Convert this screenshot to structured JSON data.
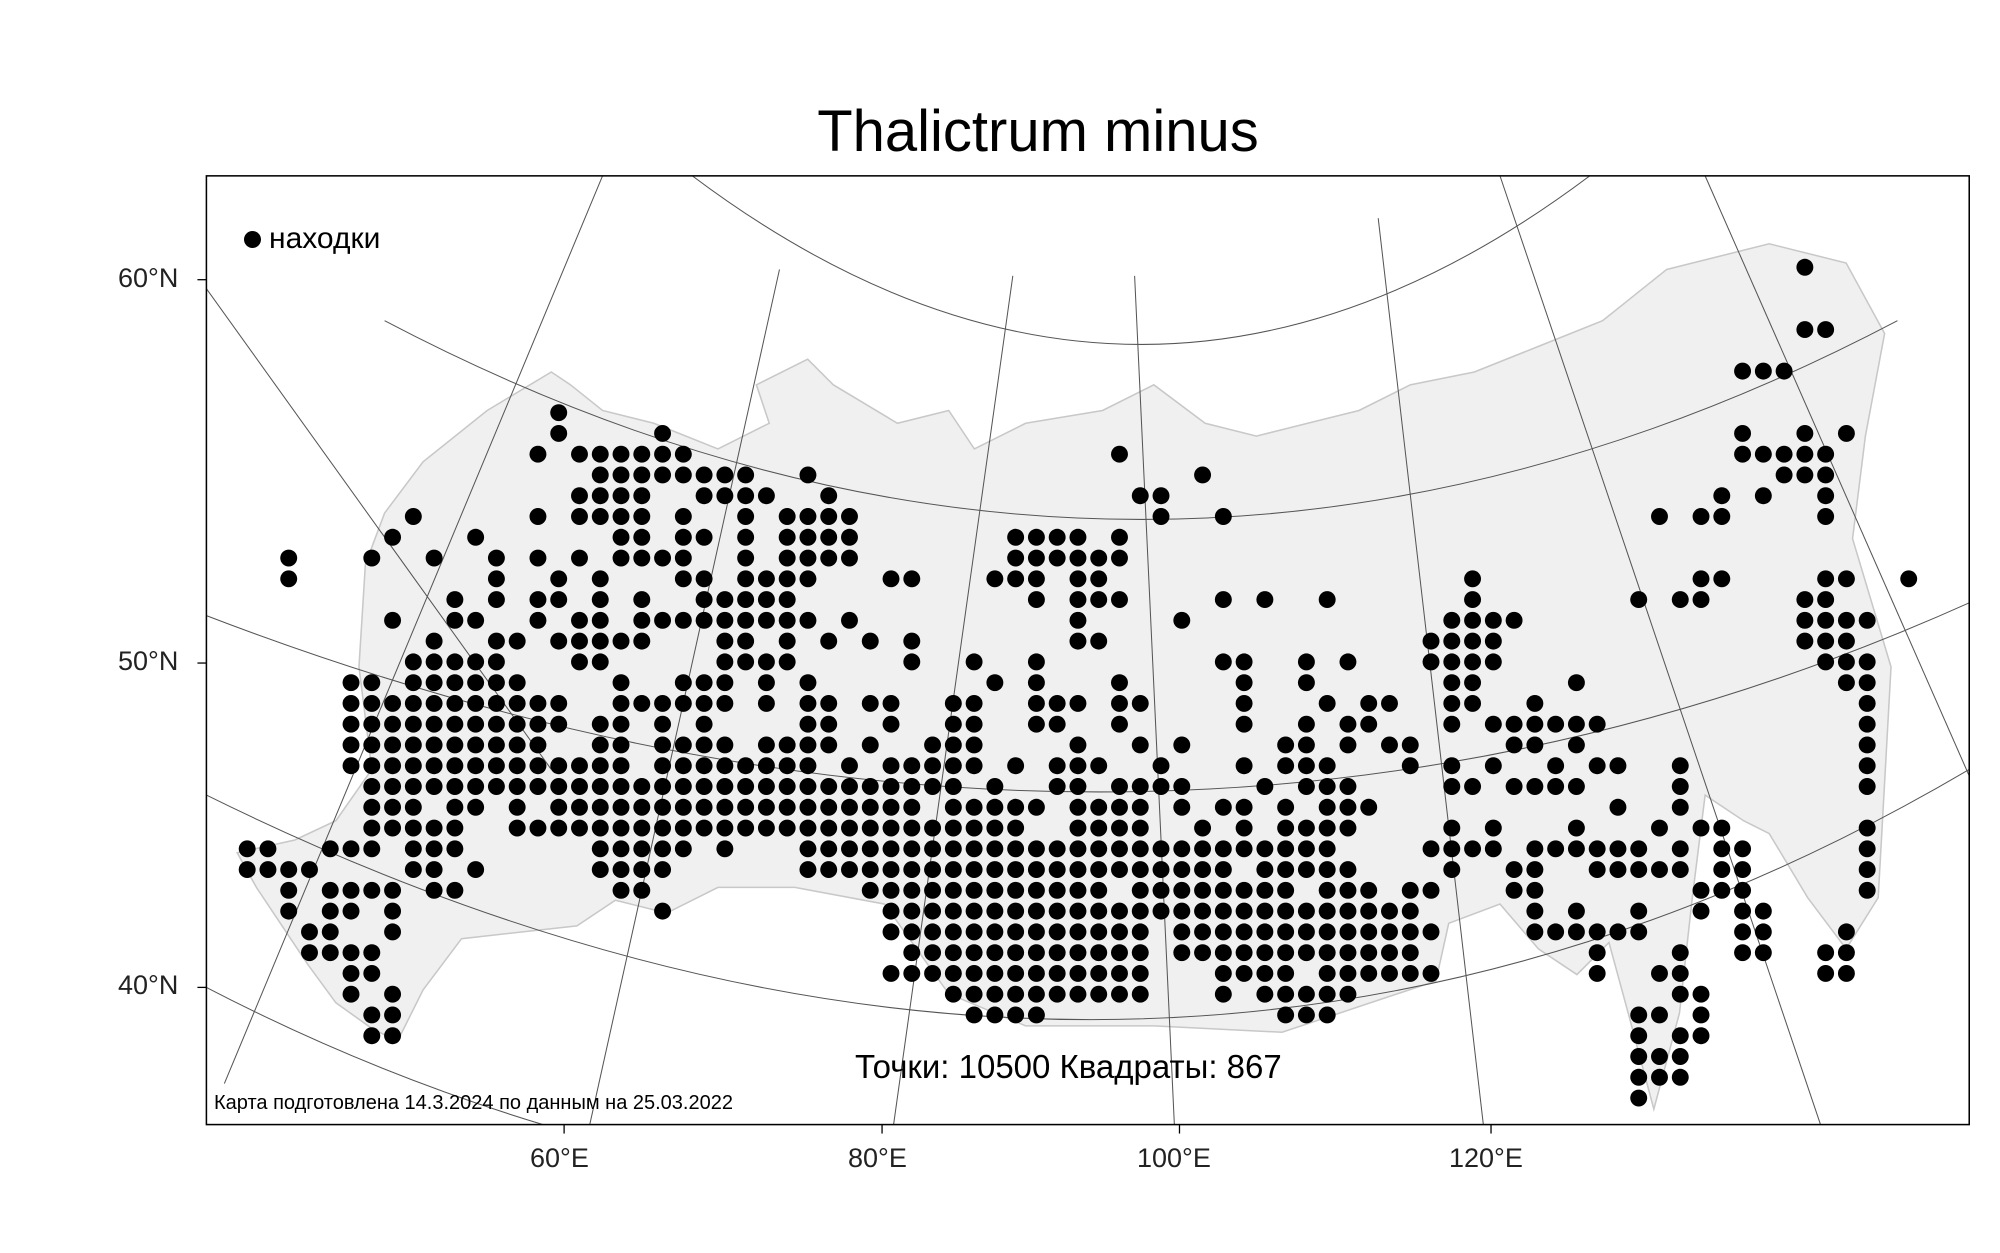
{
  "title": "Thalictrum minus",
  "legend": {
    "label": "находки",
    "marker_color": "#000000"
  },
  "axes": {
    "lat_labels": [
      "60°N",
      "50°N",
      "40°N"
    ],
    "lon_labels": [
      "60°E",
      "80°E",
      "100°E",
      "120°E"
    ]
  },
  "stats": "Точки: 10500 Квадраты: 867",
  "footer": "Карта подготовлена 14.3.2024 по данным на 25.03.2022",
  "colors": {
    "land": "#f0f0f0",
    "coast": "#c8c8c8",
    "dots": "#000000",
    "frame": "#000000"
  },
  "occurrence_grid": {
    "description_rows": "occupied grid cells per row, north to south, cells numbered west to east",
    "rows": [
      "75",
      "",
      "",
      "75-76",
      "",
      "72-74",
      "",
      "15",
      "15,20,72,75,77",
      "14,16-21,42,72-76",
      "17-24,27,46,74-76",
      "16-19,22-25,28,43-44,71,73,76",
      "8,14,16-19,21,24,26-29,44,47,68,70-71,76",
      "7,11,18-19,21-22,24,26-29,37-40,42",
      "2,6,9,12,14,16,18-21,24,26-29,37-42",
      "2,12,15,17,21-22,24-27,31-32,36-38,40-41,59,70-71,76-77,80",
      "10,12,14-15,17,19,22-26,38,40-42,47,49,52,59,67,69-70,75-76",
      "7,10-11,14,16-17,19-27,29,40,45,58-61,75-78",
      "9,12-13,15-19,23-24,26,28,30,32,40-41,57-60,75-77",
      "8-12,16-17,23-26,32,35,38,47-48,51,53,57-60,76-78",
      "5-6,8-13,18,21-23,25,27,36,38,42,48,51,58-59,64,77-78",
      "5-15,18-23,25,27-28,30-31,34-35,38-40,42-43,48,52,54-55,58-59,62,78",
      "5-15,17-18,20,22,27-28,31,34-35,38-39,42,48,51,53-54,58,60-65,78",
      "5-14,17-18,20-23,25-28,30,33-35,40,43,45,50-51,53,55-56,61-62,64,78",
      "5-18,20-27,29,31-35,37,39-41,44,48,50-52,56,58,60,63,65-66,69,78",
      "6-34,36,39-40,42-45,49,51-53,58-59,61-64,69,78",
      "6-8,10-11,13,15-32,34-38,40-43,45,47-48,50,52-54,66,69",
      "6-10,13-37,40-43,46,48,50-53,58,60,64,68,70-71,78",
      "0-1,4-6,8-10,17-21,23,27-52,57-60,62-67,69,71-72,78",
      "0-3,8-9,11,17-20,27-47,49-53,58,61-62,65-69,71-72,78",
      "2,4-7,9-10,18-19,30-41,43-50,52-54,56-57,61-62,70-72,78",
      "2,4-5,7,20,31-56,62,64,67,70,72-73",
      "3-4,7,31-43,45-57,62-67,72-73,77",
      "3-6,32-43,45-56,65,69,72-73,76-77",
      "5-6,31-43,47-50,52-57,65,68-69,76-77",
      "5,7,34-43,47,49-53,69-70",
      "6-7,35-38,50-52,67-68,70",
      "6-7,67,69-70",
      "67-69",
      "67-69",
      "67"
    ]
  }
}
